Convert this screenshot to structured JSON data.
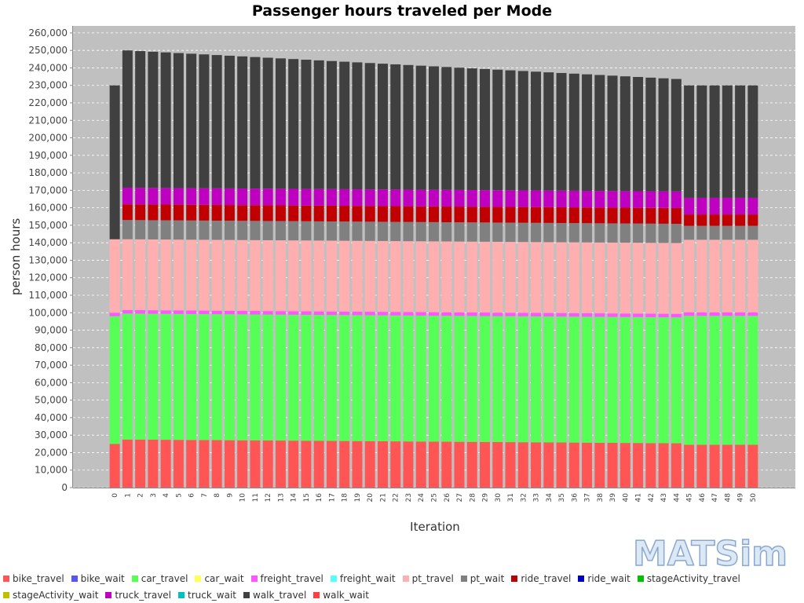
{
  "chart_data": {
    "type": "stacked_bar",
    "title": "Passenger hours traveled per Mode",
    "x_label": "Iteration",
    "y_label": "person hours",
    "logo": "MATSim",
    "categories": [
      "0",
      "1",
      "2",
      "3",
      "4",
      "5",
      "6",
      "7",
      "8",
      "9",
      "10",
      "11",
      "12",
      "13",
      "14",
      "15",
      "16",
      "17",
      "18",
      "19",
      "20",
      "21",
      "22",
      "23",
      "24",
      "25",
      "26",
      "27",
      "28",
      "29",
      "30",
      "31",
      "32",
      "33",
      "34",
      "35",
      "36",
      "37",
      "38",
      "39",
      "40",
      "41",
      "42",
      "43",
      "44",
      "45",
      "46",
      "47",
      "48",
      "49",
      "50"
    ],
    "ylim": [
      0,
      264000
    ],
    "yticks": [
      {
        "value": 0,
        "label": "0"
      },
      {
        "value": 10000,
        "label": "10,000"
      },
      {
        "value": 20000,
        "label": "20,000"
      },
      {
        "value": 30000,
        "label": "30,000"
      },
      {
        "value": 40000,
        "label": "40,000"
      },
      {
        "value": 50000,
        "label": "50,000"
      },
      {
        "value": 60000,
        "label": "60,000"
      },
      {
        "value": 70000,
        "label": "70,000"
      },
      {
        "value": 80000,
        "label": "80,000"
      },
      {
        "value": 90000,
        "label": "90,000"
      },
      {
        "value": 100000,
        "label": "100,000"
      },
      {
        "value": 110000,
        "label": "110,000"
      },
      {
        "value": 120000,
        "label": "120,000"
      },
      {
        "value": 130000,
        "label": "130,000"
      },
      {
        "value": 140000,
        "label": "140,000"
      },
      {
        "value": 150000,
        "label": "150,000"
      },
      {
        "value": 160000,
        "label": "160,000"
      },
      {
        "value": 170000,
        "label": "170,000"
      },
      {
        "value": 180000,
        "label": "180,000"
      },
      {
        "value": 190000,
        "label": "190,000"
      },
      {
        "value": 200000,
        "label": "200,000"
      },
      {
        "value": 210000,
        "label": "210,000"
      },
      {
        "value": 220000,
        "label": "220,000"
      },
      {
        "value": 230000,
        "label": "230,000"
      },
      {
        "value": 240000,
        "label": "240,000"
      },
      {
        "value": 250000,
        "label": "250,000"
      },
      {
        "value": 260000,
        "label": "260,000"
      }
    ],
    "grid": true,
    "series": [
      {
        "name": "bike_travel",
        "color": "#ff5555",
        "values": [
          25000,
          27500,
          27450,
          27400,
          27350,
          27300,
          27250,
          27200,
          27150,
          27100,
          27050,
          27000,
          26950,
          26900,
          26850,
          26800,
          26750,
          26700,
          26650,
          26600,
          26550,
          26500,
          26450,
          26400,
          26350,
          26300,
          26250,
          26200,
          26150,
          26100,
          26050,
          26000,
          25950,
          25900,
          25850,
          25800,
          25750,
          25700,
          25650,
          25600,
          25550,
          25500,
          25450,
          25400,
          25350,
          24500,
          24500,
          24500,
          24500,
          24500,
          24500
        ]
      },
      {
        "name": "bike_wait",
        "color": "#5555ff",
        "values": [
          0,
          0,
          0,
          0,
          0,
          0,
          0,
          0,
          0,
          0,
          0,
          0,
          0,
          0,
          0,
          0,
          0,
          0,
          0,
          0,
          0,
          0,
          0,
          0,
          0,
          0,
          0,
          0,
          0,
          0,
          0,
          0,
          0,
          0,
          0,
          0,
          0,
          0,
          0,
          0,
          0,
          0,
          0,
          0,
          0,
          0,
          0,
          0,
          0,
          0,
          0
        ]
      },
      {
        "name": "car_travel",
        "color": "#55ff55",
        "values": [
          73000,
          72000,
          72000,
          72000,
          72000,
          72000,
          72000,
          72000,
          72000,
          72000,
          72000,
          72000,
          72000,
          72000,
          72000,
          72000,
          72000,
          72000,
          72000,
          72000,
          72000,
          72000,
          72000,
          72000,
          72000,
          72000,
          72000,
          72000,
          72000,
          72000,
          72000,
          72000,
          72000,
          72000,
          72000,
          72000,
          72000,
          72000,
          72000,
          72000,
          72000,
          72000,
          72000,
          72000,
          72000,
          73700,
          73700,
          73700,
          73700,
          73700,
          73700
        ]
      },
      {
        "name": "car_wait",
        "color": "#ffff55",
        "values": [
          0,
          0,
          0,
          0,
          0,
          0,
          0,
          0,
          0,
          0,
          0,
          0,
          0,
          0,
          0,
          0,
          0,
          0,
          0,
          0,
          0,
          0,
          0,
          0,
          0,
          0,
          0,
          0,
          0,
          0,
          0,
          0,
          0,
          0,
          0,
          0,
          0,
          0,
          0,
          0,
          0,
          0,
          0,
          0,
          0,
          0,
          0,
          0,
          0,
          0,
          0
        ]
      },
      {
        "name": "freight_travel",
        "color": "#ff55ff",
        "values": [
          2000,
          2000,
          2000,
          2000,
          2000,
          2000,
          2000,
          2000,
          2000,
          2000,
          2000,
          2000,
          2000,
          2000,
          2000,
          2000,
          2000,
          2000,
          2000,
          2000,
          2000,
          2000,
          2000,
          2000,
          2000,
          2000,
          2000,
          2000,
          2000,
          2000,
          2000,
          2000,
          2000,
          2000,
          2000,
          2000,
          2000,
          2000,
          2000,
          2000,
          2000,
          2000,
          2000,
          2000,
          2000,
          2000,
          2000,
          2000,
          2000,
          2000,
          2000
        ]
      },
      {
        "name": "freight_wait",
        "color": "#55ffff",
        "values": [
          0,
          0,
          0,
          0,
          0,
          0,
          0,
          0,
          0,
          0,
          0,
          0,
          0,
          0,
          0,
          0,
          0,
          0,
          0,
          0,
          0,
          0,
          0,
          0,
          0,
          0,
          0,
          0,
          0,
          0,
          0,
          0,
          0,
          0,
          0,
          0,
          0,
          0,
          0,
          0,
          0,
          0,
          0,
          0,
          0,
          0,
          0,
          0,
          0,
          0,
          0
        ]
      },
      {
        "name": "pt_travel",
        "color": "#ffafaf",
        "values": [
          42000,
          40500,
          40500,
          40500,
          40500,
          40500,
          40500,
          40500,
          40500,
          40500,
          40500,
          40500,
          40500,
          40500,
          40500,
          40500,
          40500,
          40500,
          40500,
          40500,
          40500,
          40500,
          40500,
          40500,
          40500,
          40500,
          40500,
          40500,
          40500,
          40500,
          40500,
          40500,
          40500,
          40500,
          40500,
          40500,
          40500,
          40500,
          40500,
          40500,
          40500,
          40500,
          40500,
          40500,
          40500,
          41500,
          41500,
          41500,
          41500,
          41500,
          41500
        ]
      },
      {
        "name": "pt_wait",
        "color": "#808080",
        "values": [
          0,
          11000,
          11000,
          11000,
          11000,
          11000,
          11000,
          11000,
          11000,
          11000,
          11000,
          11000,
          11000,
          11000,
          11000,
          11000,
          11000,
          11000,
          11000,
          11000,
          11000,
          11000,
          11000,
          11000,
          11000,
          11000,
          11000,
          11000,
          11000,
          11000,
          11000,
          11000,
          11000,
          11000,
          11000,
          11000,
          11000,
          11000,
          11000,
          11000,
          11000,
          11000,
          11000,
          11000,
          11000,
          8000,
          8000,
          8000,
          8000,
          8000,
          8000
        ]
      },
      {
        "name": "ride_travel",
        "color": "#c00000",
        "values": [
          0,
          9000,
          9000,
          9000,
          9000,
          9000,
          9000,
          9000,
          9000,
          9000,
          9000,
          9000,
          9000,
          9000,
          9000,
          9000,
          9000,
          9000,
          9000,
          9000,
          9000,
          9000,
          9000,
          9000,
          9000,
          9000,
          9000,
          9000,
          9000,
          9000,
          9000,
          9000,
          9000,
          9000,
          9000,
          9000,
          9000,
          9000,
          9000,
          9000,
          9000,
          9000,
          9000,
          9000,
          9000,
          6500,
          6500,
          6500,
          6500,
          6500,
          6500
        ]
      },
      {
        "name": "ride_wait",
        "color": "#0000c0",
        "values": [
          0,
          0,
          0,
          0,
          0,
          0,
          0,
          0,
          0,
          0,
          0,
          0,
          0,
          0,
          0,
          0,
          0,
          0,
          0,
          0,
          0,
          0,
          0,
          0,
          0,
          0,
          0,
          0,
          0,
          0,
          0,
          0,
          0,
          0,
          0,
          0,
          0,
          0,
          0,
          0,
          0,
          0,
          0,
          0,
          0,
          0,
          0,
          0,
          0,
          0,
          0
        ]
      },
      {
        "name": "stageActivity_travel",
        "color": "#00c000",
        "values": [
          0,
          0,
          0,
          0,
          0,
          0,
          0,
          0,
          0,
          0,
          0,
          0,
          0,
          0,
          0,
          0,
          0,
          0,
          0,
          0,
          0,
          0,
          0,
          0,
          0,
          0,
          0,
          0,
          0,
          0,
          0,
          0,
          0,
          0,
          0,
          0,
          0,
          0,
          0,
          0,
          0,
          0,
          0,
          0,
          0,
          0,
          0,
          0,
          0,
          0,
          0
        ]
      },
      {
        "name": "stageActivity_wait",
        "color": "#c0c000",
        "values": [
          0,
          0,
          0,
          0,
          0,
          0,
          0,
          0,
          0,
          0,
          0,
          0,
          0,
          0,
          0,
          0,
          0,
          0,
          0,
          0,
          0,
          0,
          0,
          0,
          0,
          0,
          0,
          0,
          0,
          0,
          0,
          0,
          0,
          0,
          0,
          0,
          0,
          0,
          0,
          0,
          0,
          0,
          0,
          0,
          0,
          0,
          0,
          0,
          0,
          0,
          0
        ]
      },
      {
        "name": "truck_travel",
        "color": "#c000c0",
        "values": [
          0,
          9500,
          9500,
          9500,
          9500,
          9500,
          9500,
          9500,
          9500,
          9500,
          9500,
          9500,
          9500,
          9500,
          9500,
          9500,
          9500,
          9500,
          9500,
          9500,
          9500,
          9500,
          9500,
          9500,
          9500,
          9500,
          9500,
          9500,
          9500,
          9500,
          9500,
          9500,
          9500,
          9500,
          9500,
          9500,
          9500,
          9500,
          9500,
          9500,
          9500,
          9500,
          9500,
          9500,
          9500,
          9500,
          9500,
          9500,
          9500,
          9500,
          9500
        ]
      },
      {
        "name": "truck_wait",
        "color": "#00c0c0",
        "values": [
          0,
          0,
          0,
          0,
          0,
          0,
          0,
          0,
          0,
          0,
          0,
          0,
          0,
          0,
          0,
          0,
          0,
          0,
          0,
          0,
          0,
          0,
          0,
          0,
          0,
          0,
          0,
          0,
          0,
          0,
          0,
          0,
          0,
          0,
          0,
          0,
          0,
          0,
          0,
          0,
          0,
          0,
          0,
          0,
          0,
          0,
          0,
          0,
          0,
          0,
          0
        ]
      },
      {
        "name": "walk_travel",
        "color": "#404040",
        "values": [
          88000,
          78500,
          78170,
          77840,
          77510,
          77180,
          76850,
          76520,
          76190,
          75860,
          75530,
          75200,
          74870,
          74540,
          74210,
          73880,
          73550,
          73220,
          72890,
          72560,
          72230,
          71900,
          71570,
          71240,
          70910,
          70580,
          70250,
          69920,
          69590,
          69260,
          68930,
          68600,
          68270,
          67940,
          67610,
          67280,
          66950,
          66620,
          66290,
          65960,
          65630,
          65300,
          64970,
          64640,
          64310,
          64300,
          64300,
          64300,
          64300,
          64300,
          64300
        ]
      },
      {
        "name": "walk_wait",
        "color": "#ff4040",
        "values": [
          0,
          0,
          0,
          0,
          0,
          0,
          0,
          0,
          0,
          0,
          0,
          0,
          0,
          0,
          0,
          0,
          0,
          0,
          0,
          0,
          0,
          0,
          0,
          0,
          0,
          0,
          0,
          0,
          0,
          0,
          0,
          0,
          0,
          0,
          0,
          0,
          0,
          0,
          0,
          0,
          0,
          0,
          0,
          0,
          0,
          0,
          0,
          0,
          0,
          0,
          0
        ]
      }
    ]
  }
}
